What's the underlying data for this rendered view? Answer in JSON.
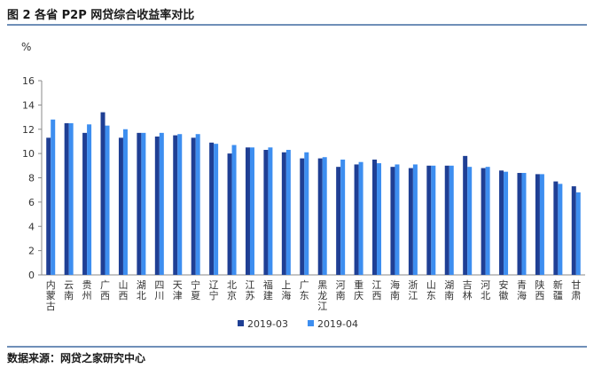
{
  "figure_title": "图 2   各省 P2P 网贷综合收益率对比",
  "unit": "%",
  "source": "数据来源：网贷之家研究中心",
  "colors": {
    "series1": "#1f3f94",
    "series2": "#3d8ef0",
    "axis": "#888888"
  },
  "chart_data": {
    "type": "bar",
    "title": "各省 P2P 网贷综合收益率对比",
    "xlabel": "",
    "ylabel": "%",
    "ylim": [
      0,
      16
    ],
    "yticks": [
      0,
      2,
      4,
      6,
      8,
      10,
      12,
      14,
      16
    ],
    "grid": false,
    "legend": "bottom",
    "categories": [
      "内蒙古",
      "云南",
      "贵州",
      "广西",
      "山西",
      "湖北",
      "四川",
      "天津",
      "宁夏",
      "辽宁",
      "北京",
      "江苏",
      "福建",
      "上海",
      "广东",
      "黑龙江",
      "河南",
      "重庆",
      "江西",
      "海南",
      "浙江",
      "山东",
      "湖南",
      "吉林",
      "河北",
      "安徽",
      "青海",
      "陕西",
      "新疆",
      "甘肃"
    ],
    "series": [
      {
        "name": "2019-03",
        "values": [
          11.3,
          12.5,
          11.7,
          13.4,
          11.3,
          11.7,
          11.4,
          11.5,
          11.3,
          10.9,
          10.0,
          10.5,
          10.3,
          10.1,
          9.6,
          9.6,
          8.9,
          9.1,
          9.5,
          8.9,
          8.8,
          9.0,
          9.0,
          9.8,
          8.8,
          8.6,
          8.4,
          8.3,
          7.7,
          7.3
        ]
      },
      {
        "name": "2019-04",
        "values": [
          12.8,
          12.5,
          12.4,
          12.3,
          12.0,
          11.7,
          11.7,
          11.6,
          11.6,
          10.8,
          10.7,
          10.5,
          10.5,
          10.3,
          10.1,
          9.7,
          9.5,
          9.3,
          9.2,
          9.1,
          9.1,
          9.0,
          9.0,
          8.9,
          8.9,
          8.5,
          8.4,
          8.3,
          7.5,
          6.8
        ]
      }
    ]
  }
}
